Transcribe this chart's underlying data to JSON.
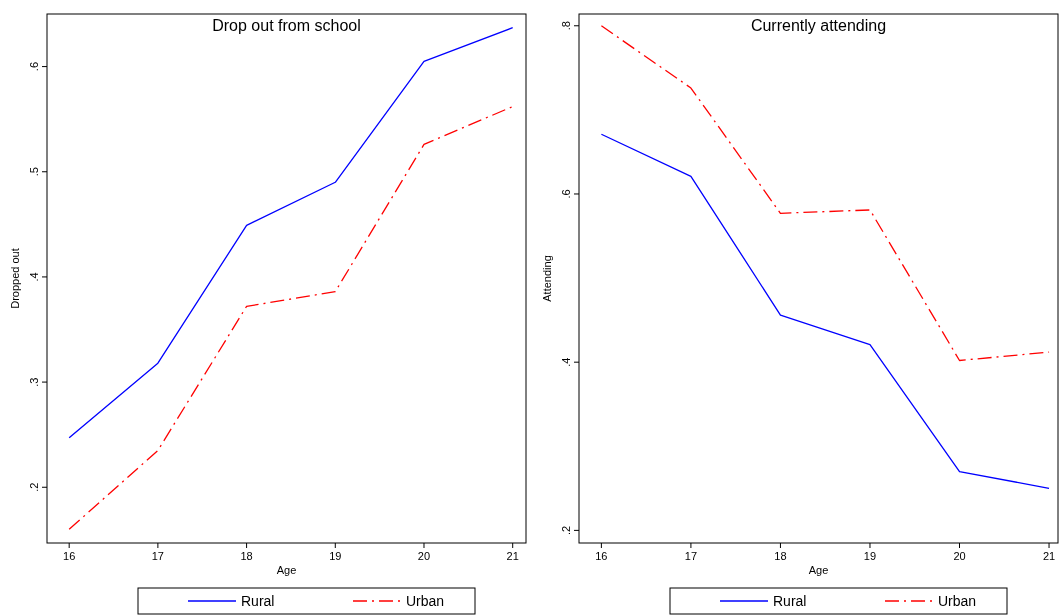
{
  "chart_data": [
    {
      "type": "line",
      "title": "Drop out from school",
      "xlabel": "Age",
      "ylabel": "Dropped out",
      "x": [
        16,
        17,
        18,
        19,
        20,
        21
      ],
      "xlim": [
        15.75,
        21.15
      ],
      "xticks": [
        16,
        17,
        18,
        19,
        20,
        21
      ],
      "ylim": [
        0.147,
        0.65
      ],
      "yticks": [
        {
          "value": 0.2,
          "label": ".2"
        },
        {
          "value": 0.3,
          "label": ".3"
        },
        {
          "value": 0.4,
          "label": ".4"
        },
        {
          "value": 0.5,
          "label": ".5"
        },
        {
          "value": 0.6,
          "label": ".6"
        }
      ],
      "grid": false,
      "legend": "bottom",
      "series": [
        {
          "name": "Rural",
          "color": "#0000ff",
          "line_style": "solid",
          "values": [
            0.247,
            0.318,
            0.449,
            0.49,
            0.605,
            0.637
          ]
        },
        {
          "name": "Urban",
          "color": "#ff0000",
          "line_style": "dashed",
          "values": [
            0.16,
            0.235,
            0.372,
            0.386,
            0.526,
            0.562
          ]
        }
      ]
    },
    {
      "type": "line",
      "title": "Currently attending",
      "xlabel": "Age",
      "ylabel": "Attending",
      "x": [
        16,
        17,
        18,
        19,
        20,
        21
      ],
      "xlim": [
        15.75,
        21.1
      ],
      "xticks": [
        16,
        17,
        18,
        19,
        20,
        21
      ],
      "ylim": [
        0.185,
        0.814
      ],
      "yticks": [
        {
          "value": 0.2,
          "label": ".2"
        },
        {
          "value": 0.4,
          "label": ".4"
        },
        {
          "value": 0.6,
          "label": ".6"
        },
        {
          "value": 0.8,
          "label": ".8"
        }
      ],
      "grid": false,
      "legend": "bottom",
      "series": [
        {
          "name": "Rural",
          "color": "#0000ff",
          "line_style": "solid",
          "values": [
            0.671,
            0.621,
            0.456,
            0.421,
            0.27,
            0.25
          ]
        },
        {
          "name": "Urban",
          "color": "#ff0000",
          "line_style": "dashed",
          "values": [
            0.8,
            0.726,
            0.577,
            0.581,
            0.402,
            0.412
          ]
        }
      ]
    }
  ]
}
